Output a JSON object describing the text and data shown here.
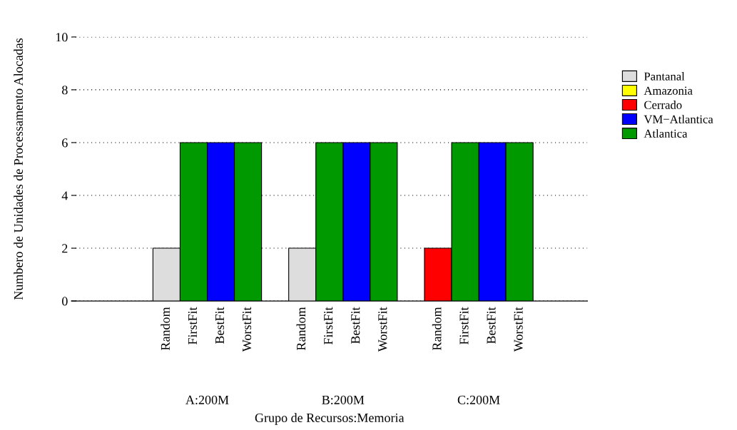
{
  "chart_data": {
    "type": "bar",
    "ylabel": "Numbero de Unidades de Processamento Alocadas",
    "xlabel": "Grupo de Recursos:Memoria",
    "categories": [
      null,
      null,
      null,
      "Random",
      "FirstFit",
      "BestFit",
      "WorstFit",
      null,
      "Random",
      "FirstFit",
      "BestFit",
      "WorstFit",
      null,
      "Random",
      "FirstFit",
      "BestFit",
      "WorstFit",
      null,
      null
    ],
    "series": [
      {
        "name": "Pantanal",
        "color": "#dddddd",
        "values": [
          null,
          null,
          null,
          2,
          null,
          null,
          null,
          null,
          2,
          null,
          null,
          null,
          null,
          null,
          null,
          null,
          null,
          null,
          null
        ]
      },
      {
        "name": "Amazonia",
        "color": "#ffff00",
        "values": [
          null,
          null,
          null,
          null,
          null,
          null,
          null,
          null,
          null,
          null,
          null,
          null,
          null,
          null,
          null,
          null,
          null,
          null,
          null
        ]
      },
      {
        "name": "Cerrado",
        "color": "#ff0000",
        "values": [
          null,
          null,
          null,
          null,
          null,
          null,
          null,
          null,
          null,
          null,
          null,
          null,
          null,
          2,
          null,
          null,
          null,
          null,
          null
        ]
      },
      {
        "name": "VM−Atlantica",
        "color": "#0000ff",
        "values": [
          null,
          null,
          null,
          null,
          null,
          6,
          null,
          null,
          null,
          null,
          6,
          null,
          null,
          null,
          null,
          6,
          null,
          null,
          null
        ]
      },
      {
        "name": "Atlantica",
        "color": "#009900",
        "values": [
          null,
          null,
          null,
          null,
          6,
          null,
          6,
          null,
          null,
          6,
          null,
          6,
          null,
          null,
          6,
          null,
          6,
          null,
          null
        ]
      }
    ],
    "annotations": [
      "A:200M",
      "B:200M",
      "C:200M"
    ],
    "ylim": [
      0,
      10
    ],
    "yticks": [
      0,
      2,
      4,
      6,
      8,
      10
    ],
    "grid": "y",
    "legend": "right"
  }
}
